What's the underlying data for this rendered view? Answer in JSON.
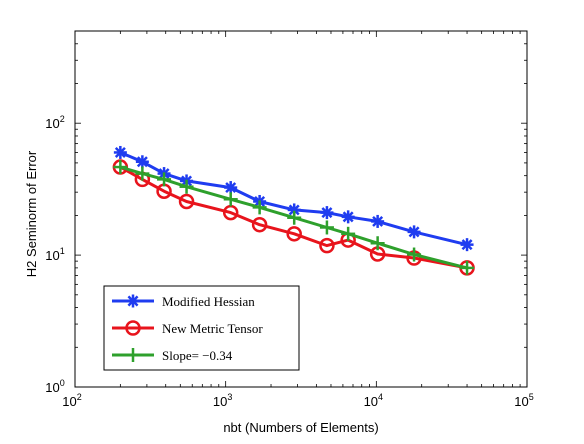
{
  "chart_data": {
    "type": "line",
    "x_scale": "log",
    "y_scale": "log",
    "xlabel": "nbt (Numbers of Elements)",
    "ylabel": "H2 Seminorm of Error",
    "xlim": [
      100,
      100000
    ],
    "ylim": [
      1,
      500
    ],
    "x_ticks": [
      {
        "value": 100,
        "base": "10",
        "exp": "2"
      },
      {
        "value": 1000,
        "base": "10",
        "exp": "3"
      },
      {
        "value": 10000,
        "base": "10",
        "exp": "4"
      },
      {
        "value": 100000,
        "base": "10",
        "exp": "5"
      }
    ],
    "y_ticks": [
      {
        "value": 1,
        "base": "10",
        "exp": "0"
      },
      {
        "value": 10,
        "base": "10",
        "exp": "1"
      },
      {
        "value": 100,
        "base": "10",
        "exp": "2"
      }
    ],
    "legend_position": "lower-left",
    "series": [
      {
        "name": "Modified Hessian",
        "color": "#1f3cf0",
        "marker": "asterisk",
        "x": [
          200,
          280,
          390,
          550,
          1080,
          1680,
          2850,
          4700,
          6500,
          10200,
          17800,
          40000
        ],
        "y": [
          60,
          51,
          41.5,
          36.5,
          32.5,
          25.5,
          22,
          21,
          19.5,
          18,
          15,
          12
        ]
      },
      {
        "name": "New Metric Tensor",
        "color": "#e8141c",
        "marker": "circle",
        "x": [
          200,
          280,
          390,
          550,
          1080,
          1680,
          2850,
          4700,
          6500,
          10200,
          17800,
          40000
        ],
        "y": [
          46.5,
          37.5,
          30.5,
          25.5,
          21,
          17,
          14.5,
          11.8,
          13,
          10.2,
          9.5,
          8
        ]
      },
      {
        "name": "Slope= −0.34",
        "color": "#2ea02c",
        "marker": "plus",
        "x": [
          200,
          280,
          390,
          550,
          1080,
          1680,
          2850,
          4700,
          6500,
          10200,
          17800,
          40000
        ],
        "y": [
          46.5,
          41.5,
          37.5,
          33,
          26.5,
          23,
          19.2,
          16.2,
          14.5,
          12.3,
          10.1,
          8
        ]
      }
    ]
  }
}
